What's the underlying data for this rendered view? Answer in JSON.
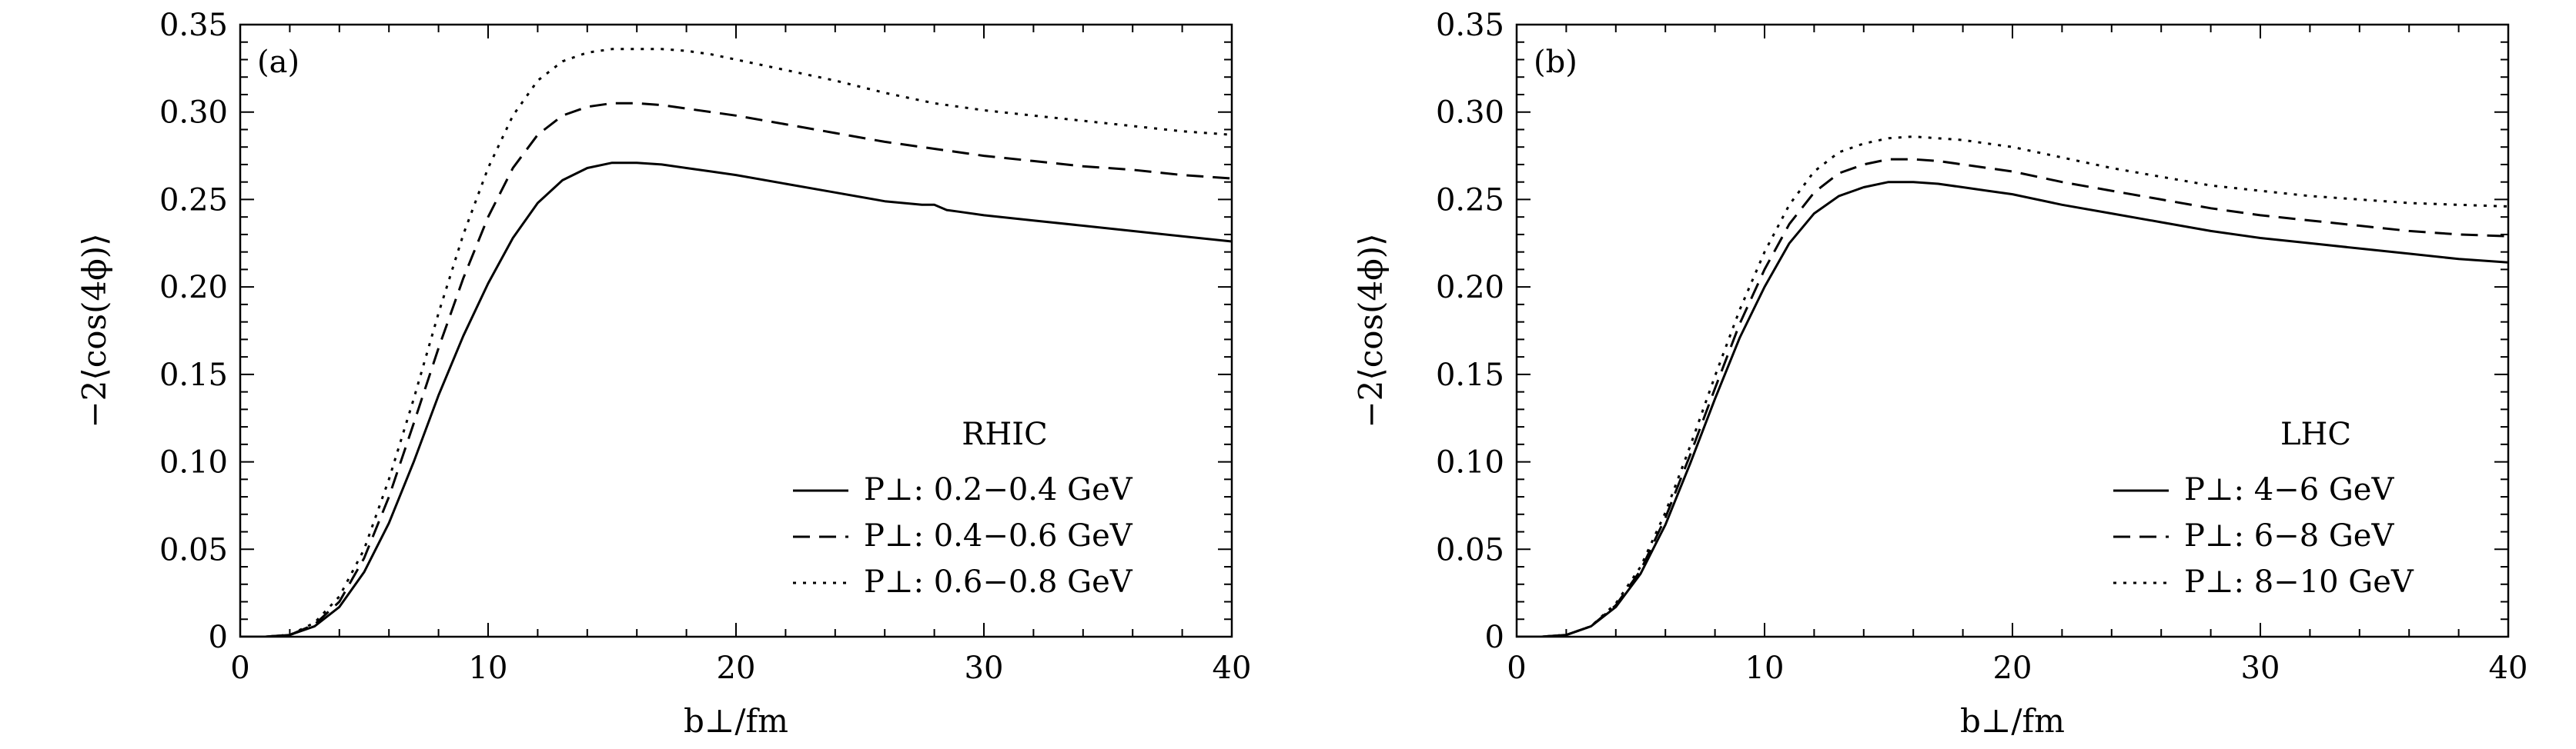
{
  "chart_data": [
    {
      "type": "line",
      "panel_label": "(a)",
      "xlabel": "b⊥/fm",
      "ylabel": "−2⟨cos(4ϕ)⟩",
      "xlim": [
        0,
        40
      ],
      "ylim": [
        0,
        0.35
      ],
      "xticks": [
        0,
        10,
        20,
        30,
        40
      ],
      "xtick_labels": [
        "0",
        "10",
        "20",
        "30",
        "40"
      ],
      "yticks": [
        0,
        0.05,
        0.1,
        0.15,
        0.2,
        0.25,
        0.3,
        0.35
      ],
      "ytick_labels": [
        "0",
        "0.05",
        "0.10",
        "0.15",
        "0.20",
        "0.25",
        "0.30",
        "0.35"
      ],
      "legend_title": "RHIC",
      "legend_position": "bottom-right",
      "series": [
        {
          "name": "P⊥: 0.2−0.4 GeV",
          "dash": "solid",
          "x": [
            0,
            1,
            2,
            3,
            4,
            5,
            6,
            7,
            8,
            9,
            10,
            11,
            12,
            13,
            14,
            15,
            16,
            17,
            18,
            19,
            20,
            22,
            24,
            26,
            27.5,
            28,
            28.5,
            29,
            30,
            32,
            34,
            36,
            38,
            40
          ],
          "y": [
            0,
            0,
            0.001,
            0.006,
            0.017,
            0.037,
            0.065,
            0.1,
            0.138,
            0.172,
            0.202,
            0.228,
            0.248,
            0.261,
            0.268,
            0.271,
            0.271,
            0.27,
            0.268,
            0.266,
            0.264,
            0.259,
            0.254,
            0.249,
            0.247,
            0.247,
            0.244,
            0.243,
            0.241,
            0.238,
            0.235,
            0.232,
            0.229,
            0.226
          ]
        },
        {
          "name": "P⊥: 0.4−0.6 GeV",
          "dash": "dashed",
          "x": [
            0,
            1,
            2,
            3,
            4,
            5,
            6,
            7,
            8,
            9,
            10,
            11,
            12,
            13,
            14,
            15,
            16,
            17,
            18,
            19,
            20,
            22,
            24,
            26,
            28,
            30,
            32,
            34,
            36,
            38,
            40
          ],
          "y": [
            0,
            0,
            0.001,
            0.007,
            0.02,
            0.045,
            0.08,
            0.122,
            0.165,
            0.205,
            0.24,
            0.268,
            0.287,
            0.298,
            0.303,
            0.305,
            0.305,
            0.304,
            0.302,
            0.3,
            0.298,
            0.293,
            0.288,
            0.283,
            0.279,
            0.275,
            0.272,
            0.269,
            0.267,
            0.264,
            0.262
          ]
        },
        {
          "name": "P⊥: 0.6−0.8 GeV",
          "dash": "dotted",
          "x": [
            0,
            1,
            2,
            3,
            4,
            5,
            6,
            7,
            8,
            9,
            10,
            11,
            12,
            13,
            14,
            15,
            16,
            17,
            18,
            19,
            20,
            22,
            24,
            26,
            28,
            30,
            32,
            34,
            36,
            38,
            40
          ],
          "y": [
            0,
            0,
            0.001,
            0.008,
            0.023,
            0.05,
            0.09,
            0.136,
            0.185,
            0.23,
            0.268,
            0.298,
            0.318,
            0.329,
            0.334,
            0.336,
            0.336,
            0.336,
            0.335,
            0.333,
            0.33,
            0.324,
            0.318,
            0.311,
            0.305,
            0.301,
            0.298,
            0.295,
            0.292,
            0.289,
            0.287
          ]
        }
      ]
    },
    {
      "type": "line",
      "panel_label": "(b)",
      "xlabel": "b⊥/fm",
      "ylabel": "−2⟨cos(4ϕ)⟩",
      "xlim": [
        0,
        40
      ],
      "ylim": [
        0,
        0.35
      ],
      "xticks": [
        0,
        10,
        20,
        30,
        40
      ],
      "xtick_labels": [
        "0",
        "10",
        "20",
        "30",
        "40"
      ],
      "yticks": [
        0,
        0.05,
        0.1,
        0.15,
        0.2,
        0.25,
        0.3,
        0.35
      ],
      "ytick_labels": [
        "0",
        "0.05",
        "0.10",
        "0.15",
        "0.20",
        "0.25",
        "0.30",
        "0.35"
      ],
      "legend_title": "LHC",
      "legend_position": "bottom-right",
      "series": [
        {
          "name": "P⊥: 4−6 GeV",
          "dash": "solid",
          "x": [
            0,
            1,
            2,
            3,
            4,
            5,
            6,
            7,
            8,
            9,
            10,
            11,
            12,
            13,
            14,
            15,
            16,
            17,
            18,
            19,
            20,
            22,
            24,
            26,
            28,
            30,
            32,
            34,
            36,
            38,
            40
          ],
          "y": [
            0,
            0,
            0.001,
            0.006,
            0.017,
            0.036,
            0.064,
            0.099,
            0.136,
            0.171,
            0.2,
            0.225,
            0.242,
            0.252,
            0.257,
            0.26,
            0.26,
            0.259,
            0.257,
            0.255,
            0.253,
            0.247,
            0.242,
            0.237,
            0.232,
            0.228,
            0.225,
            0.222,
            0.219,
            0.216,
            0.214
          ]
        },
        {
          "name": "P⊥: 6−8 GeV",
          "dash": "dashed",
          "x": [
            0,
            1,
            2,
            3,
            4,
            5,
            6,
            7,
            8,
            9,
            10,
            11,
            12,
            13,
            14,
            15,
            16,
            17,
            18,
            19,
            20,
            22,
            24,
            26,
            28,
            30,
            32,
            34,
            36,
            38,
            40
          ],
          "y": [
            0,
            0,
            0.001,
            0.006,
            0.018,
            0.038,
            0.068,
            0.104,
            0.142,
            0.179,
            0.21,
            0.236,
            0.254,
            0.265,
            0.27,
            0.273,
            0.273,
            0.272,
            0.27,
            0.268,
            0.266,
            0.26,
            0.255,
            0.25,
            0.245,
            0.241,
            0.238,
            0.235,
            0.232,
            0.23,
            0.229
          ]
        },
        {
          "name": "P⊥: 8−10 GeV",
          "dash": "dotted",
          "x": [
            0,
            1,
            2,
            3,
            4,
            5,
            6,
            7,
            8,
            9,
            10,
            11,
            12,
            13,
            14,
            15,
            16,
            17,
            18,
            19,
            20,
            22,
            24,
            26,
            28,
            30,
            32,
            34,
            36,
            38,
            40
          ],
          "y": [
            0,
            0,
            0.001,
            0.006,
            0.019,
            0.04,
            0.071,
            0.109,
            0.149,
            0.187,
            0.22,
            0.247,
            0.266,
            0.277,
            0.282,
            0.285,
            0.286,
            0.285,
            0.284,
            0.282,
            0.28,
            0.274,
            0.268,
            0.263,
            0.258,
            0.255,
            0.252,
            0.25,
            0.248,
            0.247,
            0.246
          ]
        }
      ]
    }
  ]
}
